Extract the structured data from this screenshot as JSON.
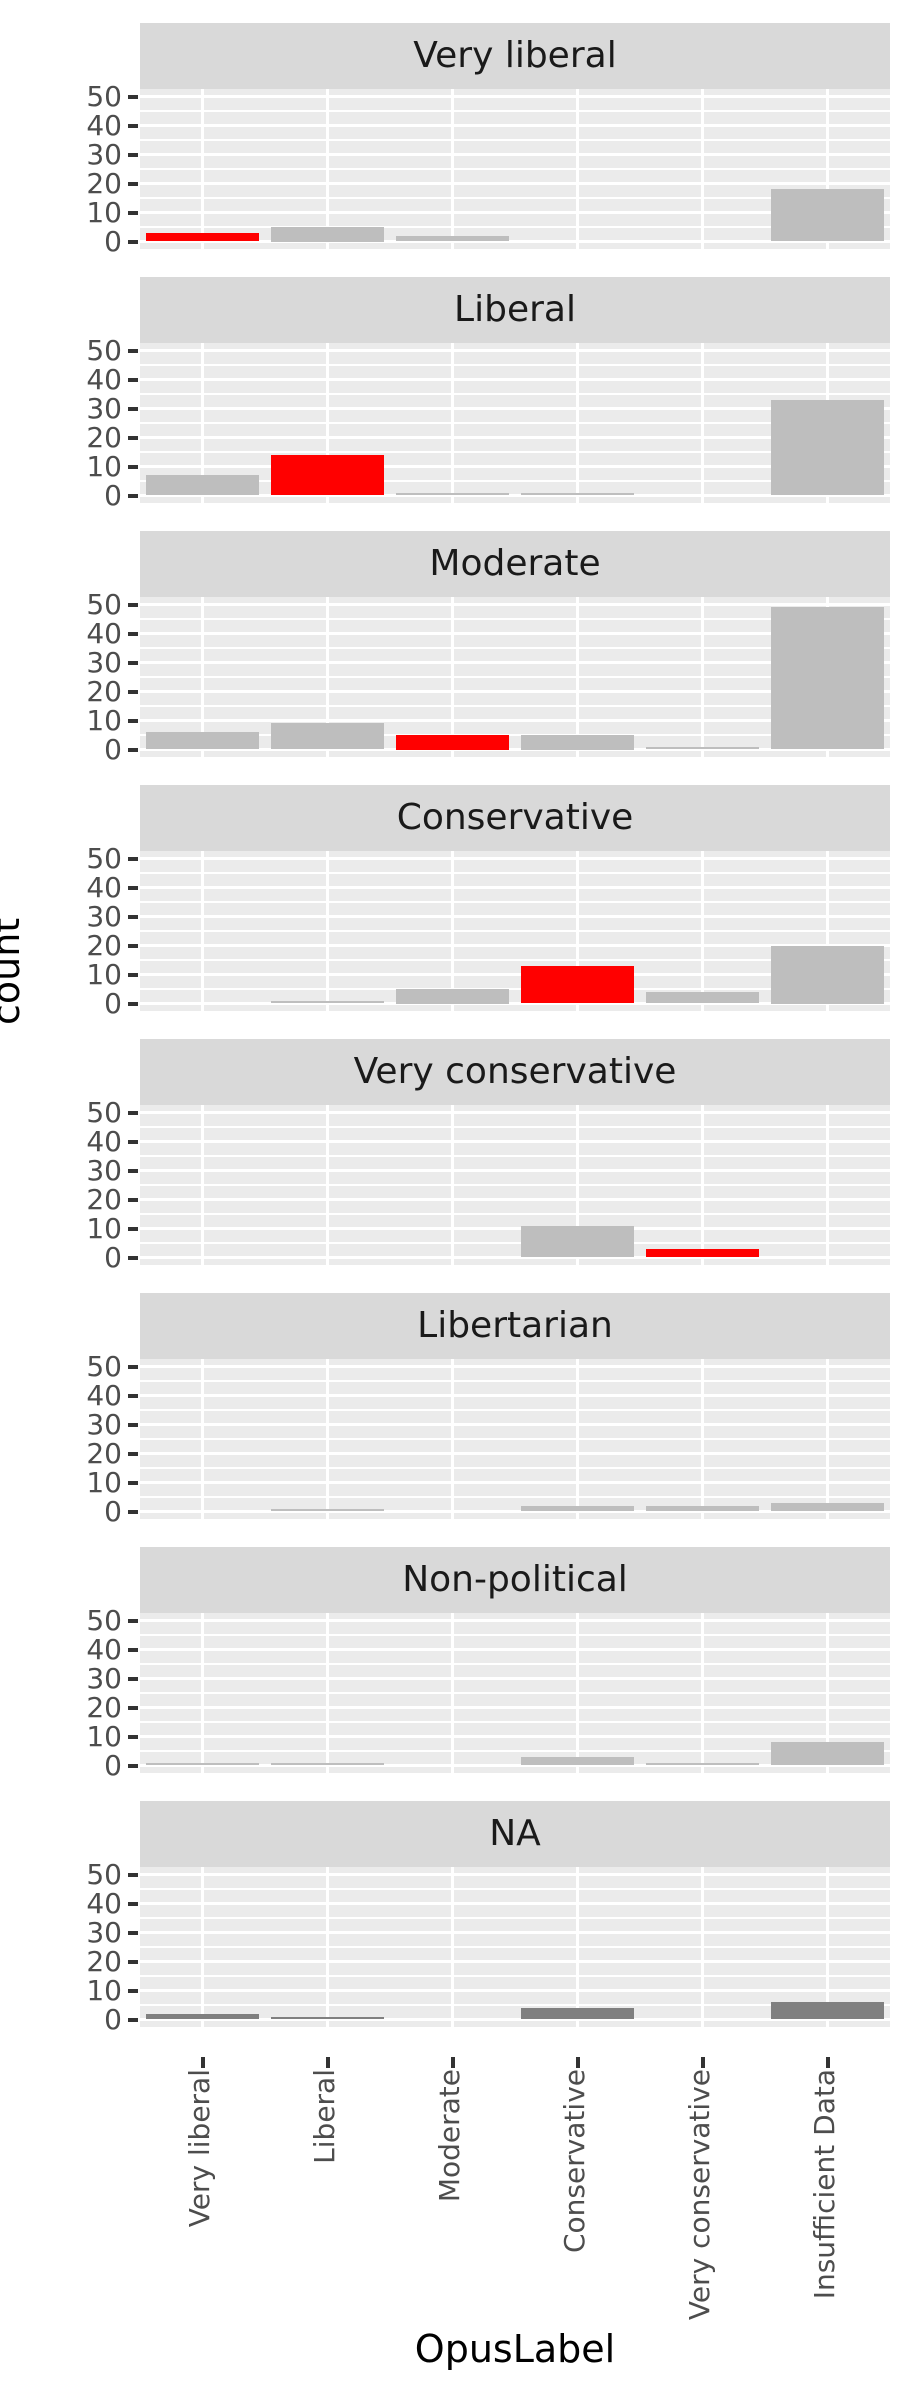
{
  "figure": {
    "background": "#ffffff",
    "panel_background": "#EBEBEB",
    "gridline_color": "#ffffff",
    "strip_background": "#D9D9D9",
    "strip_text_color": "#1A1A1A",
    "axis_text_color": "#4D4D4D",
    "axis_title_color": "#000000",
    "tick_mark_color": "#333333"
  },
  "chart_data": {
    "type": "bar",
    "title": "",
    "xlabel": "OpusLabel",
    "ylabel": "count",
    "ylim": [
      0,
      50
    ],
    "yticks": [
      0,
      10,
      20,
      30,
      40,
      50
    ],
    "grid_minor_every": 5,
    "legend": "none",
    "facet_layout": "one column, 8 stacked facets sharing x axis",
    "categories": [
      "Very liberal",
      "Liberal",
      "Moderate",
      "Conservative",
      "Very conservative",
      "Insufficient Data"
    ],
    "series": [
      {
        "name": "Very liberal",
        "values": [
          3,
          5,
          2,
          0,
          0,
          18
        ],
        "highlight_category": "Very liberal",
        "na_fill": false
      },
      {
        "name": "Liberal",
        "values": [
          7,
          14,
          1,
          1,
          0,
          33
        ],
        "highlight_category": "Liberal",
        "na_fill": false
      },
      {
        "name": "Moderate",
        "values": [
          6,
          9,
          5,
          5,
          1,
          49
        ],
        "highlight_category": "Moderate",
        "na_fill": false
      },
      {
        "name": "Conservative",
        "values": [
          0,
          1,
          5,
          13,
          4,
          20
        ],
        "highlight_category": "Conservative",
        "na_fill": false
      },
      {
        "name": "Very conservative",
        "values": [
          0,
          0,
          0,
          11,
          3,
          0
        ],
        "highlight_category": "Very conservative",
        "na_fill": false
      },
      {
        "name": "Libertarian",
        "values": [
          0,
          1,
          0,
          2,
          2,
          3
        ],
        "highlight_category": null,
        "na_fill": false
      },
      {
        "name": "Non-political",
        "values": [
          1,
          1,
          0,
          3,
          1,
          8
        ],
        "highlight_category": null,
        "na_fill": false
      },
      {
        "name": "NA",
        "values": [
          2,
          1,
          0,
          4,
          0,
          6
        ],
        "highlight_category": null,
        "na_fill": true
      }
    ],
    "colors": {
      "highlight": "#FF0000",
      "bar": "#BEBEBE",
      "bar_na": "#808080"
    }
  }
}
